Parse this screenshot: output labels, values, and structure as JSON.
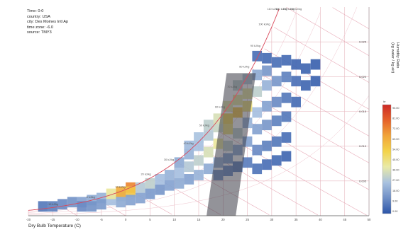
{
  "meta": {
    "lines": [
      "Time: 0-0",
      "country: USA",
      "city: Des Moines Intl Ap",
      "time zone: -6.0",
      "source: TMY3"
    ]
  },
  "chart_data": {
    "type": "heatmap",
    "title": "",
    "xlabel": "Dry Bulb Temperature (C)",
    "ylabel_lines": [
      "Humidity Ratio",
      "(kg water / kg air)"
    ],
    "xlim": [
      -20,
      50
    ],
    "ylim": [
      0,
      0.03
    ],
    "x_ticks": [
      -20,
      -15,
      -10,
      -5,
      0,
      5,
      10,
      15,
      20,
      25,
      30,
      35,
      40,
      45,
      50
    ],
    "y_ticks": [
      0.005,
      0.01,
      0.015,
      0.02,
      0.025
    ],
    "enthalpy_labels": [
      "-10 kJ/kg",
      "0 kJ/kg",
      "10 kJ/kg",
      "20 kJ/kg",
      "30 kJ/kg",
      "40 kJ/kg",
      "50 kJ/kg",
      "60 kJ/kg",
      "70 kJ/kg",
      "80 kJ/kg",
      "90 kJ/kg",
      "100 kJ/kg",
      "110 kJ/kg",
      "120 kJ/kg",
      "130 kJ/kg",
      "140 kJ/kg"
    ],
    "colorbar": {
      "label": "hr",
      "ticks": [
        "90.00",
        "81.00",
        "72.00",
        "63.00",
        "54.00",
        "45.00",
        "36.00",
        "27.00",
        "18.00",
        "9.00",
        "0.00"
      ],
      "min": 0,
      "max": 90,
      "colors": [
        "#2c55a8",
        "#6f8fc6",
        "#a9c2e0",
        "#e9eaa7",
        "#f3d34a",
        "#f1a53a",
        "#e5622a",
        "#cc2a26"
      ]
    },
    "comfort_band": {
      "x_range": [
        19.5,
        25.5
      ],
      "y_range": [
        0.0,
        0.0205
      ]
    },
    "density_cells": [
      {
        "t": -17,
        "w": 0.0006,
        "v": 8
      },
      {
        "t": -15,
        "w": 0.0006,
        "v": 10
      },
      {
        "t": -13,
        "w": 0.0009,
        "v": 12
      },
      {
        "t": -11,
        "w": 0.0012,
        "v": 14
      },
      {
        "t": -9,
        "w": 0.0012,
        "v": 18
      },
      {
        "t": -7,
        "w": 0.0015,
        "v": 20
      },
      {
        "t": -5,
        "w": 0.0018,
        "v": 22
      },
      {
        "t": -9,
        "w": 0.0006,
        "v": 12
      },
      {
        "t": -7,
        "w": 0.0006,
        "v": 14
      },
      {
        "t": -5,
        "w": 0.0009,
        "v": 16
      },
      {
        "t": -3,
        "w": 0.0015,
        "v": 25
      },
      {
        "t": -1,
        "w": 0.0021,
        "v": 30
      },
      {
        "t": -3,
        "w": 0.0024,
        "v": 40
      },
      {
        "t": -1,
        "w": 0.0027,
        "v": 62
      },
      {
        "t": 1,
        "w": 0.0033,
        "v": 70
      },
      {
        "t": 1,
        "w": 0.0027,
        "v": 55
      },
      {
        "t": -1,
        "w": 0.0012,
        "v": 20
      },
      {
        "t": 1,
        "w": 0.0015,
        "v": 18
      },
      {
        "t": 3,
        "w": 0.0018,
        "v": 18
      },
      {
        "t": 3,
        "w": 0.0033,
        "v": 28
      },
      {
        "t": 5,
        "w": 0.0039,
        "v": 30
      },
      {
        "t": 5,
        "w": 0.0024,
        "v": 16
      },
      {
        "t": 7,
        "w": 0.0045,
        "v": 25
      },
      {
        "t": 7,
        "w": 0.003,
        "v": 15
      },
      {
        "t": 9,
        "w": 0.0051,
        "v": 22
      },
      {
        "t": 9,
        "w": 0.0036,
        "v": 18
      },
      {
        "t": 11,
        "w": 0.0054,
        "v": 25
      },
      {
        "t": 11,
        "w": 0.0039,
        "v": 20
      },
      {
        "t": 13,
        "w": 0.0063,
        "v": 28
      },
      {
        "t": 13,
        "w": 0.0045,
        "v": 18
      },
      {
        "t": 15,
        "w": 0.0072,
        "v": 30
      },
      {
        "t": 15,
        "w": 0.0051,
        "v": 22
      },
      {
        "t": 17,
        "w": 0.0084,
        "v": 35
      },
      {
        "t": 17,
        "w": 0.006,
        "v": 20
      },
      {
        "t": 19,
        "w": 0.0096,
        "v": 40
      },
      {
        "t": 19,
        "w": 0.0069,
        "v": 22
      },
      {
        "t": 21,
        "w": 0.0117,
        "v": 45
      },
      {
        "t": 21,
        "w": 0.0093,
        "v": 30
      },
      {
        "t": 21,
        "w": 0.0132,
        "v": 50
      },
      {
        "t": 23,
        "w": 0.0141,
        "v": 55
      },
      {
        "t": 23,
        "w": 0.0111,
        "v": 30
      },
      {
        "t": 25,
        "w": 0.015,
        "v": 45
      },
      {
        "t": 25,
        "w": 0.0168,
        "v": 40
      },
      {
        "t": 27,
        "w": 0.0171,
        "v": 30
      },
      {
        "t": 27,
        "w": 0.0141,
        "v": 25
      },
      {
        "t": 29,
        "w": 0.018,
        "v": 22
      },
      {
        "t": 29,
        "w": 0.015,
        "v": 18
      },
      {
        "t": 31,
        "w": 0.0186,
        "v": 15
      },
      {
        "t": 31,
        "w": 0.0156,
        "v": 12
      },
      {
        "t": 33,
        "w": 0.0192,
        "v": 10
      },
      {
        "t": 33,
        "w": 0.0162,
        "v": 8
      },
      {
        "t": 35,
        "w": 0.0186,
        "v": 6
      },
      {
        "t": 23,
        "w": 0.018,
        "v": 30
      },
      {
        "t": 25,
        "w": 0.0189,
        "v": 28
      },
      {
        "t": 27,
        "w": 0.0195,
        "v": 20
      },
      {
        "t": 29,
        "w": 0.0201,
        "v": 15
      },
      {
        "t": 19,
        "w": 0.012,
        "v": 32
      },
      {
        "t": 17,
        "w": 0.0108,
        "v": 28
      },
      {
        "t": 15,
        "w": 0.0093,
        "v": 25
      },
      {
        "t": 13,
        "w": 0.0081,
        "v": 22
      },
      {
        "t": 11,
        "w": 0.0069,
        "v": 20
      },
      {
        "t": 27,
        "w": 0.0117,
        "v": 18
      },
      {
        "t": 29,
        "w": 0.0123,
        "v": 15
      },
      {
        "t": 31,
        "w": 0.0129,
        "v": 10
      },
      {
        "t": 33,
        "w": 0.0135,
        "v": 8
      },
      {
        "t": 25,
        "w": 0.0126,
        "v": 22
      },
      {
        "t": 23,
        "w": 0.0087,
        "v": 20
      },
      {
        "t": 25,
        "w": 0.0099,
        "v": 18
      },
      {
        "t": 27,
        "w": 0.0087,
        "v": 12
      },
      {
        "t": 29,
        "w": 0.0093,
        "v": 10
      },
      {
        "t": 31,
        "w": 0.0099,
        "v": 8
      },
      {
        "t": 33,
        "w": 0.0105,
        "v": 6
      },
      {
        "t": 21,
        "w": 0.0075,
        "v": 18
      },
      {
        "t": 19,
        "w": 0.0051,
        "v": 14
      },
      {
        "t": 21,
        "w": 0.0057,
        "v": 12
      },
      {
        "t": 23,
        "w": 0.0063,
        "v": 10
      },
      {
        "t": 25,
        "w": 0.0069,
        "v": 9
      },
      {
        "t": 27,
        "w": 0.006,
        "v": 7
      },
      {
        "t": 29,
        "w": 0.0066,
        "v": 6
      },
      {
        "t": 31,
        "w": 0.0072,
        "v": 5
      },
      {
        "t": 33,
        "w": 0.0078,
        "v": 4
      },
      {
        "t": 35,
        "w": 0.0156,
        "v": 5
      },
      {
        "t": 35,
        "w": 0.021,
        "v": 4
      },
      {
        "t": 33,
        "w": 0.0216,
        "v": 5
      },
      {
        "t": 31,
        "w": 0.0213,
        "v": 6
      },
      {
        "t": 29,
        "w": 0.0219,
        "v": 5
      },
      {
        "t": 27,
        "w": 0.0222,
        "v": 6
      },
      {
        "t": 37,
        "w": 0.0204,
        "v": 4
      },
      {
        "t": 37,
        "w": 0.018,
        "v": 4
      },
      {
        "t": 39,
        "w": 0.021,
        "v": 3
      },
      {
        "t": 39,
        "w": 0.0186,
        "v": 3
      },
      {
        "t": 23,
        "w": 0.0159,
        "v": 40
      },
      {
        "t": 21,
        "w": 0.015,
        "v": 38
      },
      {
        "t": 19,
        "w": 0.0132,
        "v": 35
      },
      {
        "t": 17,
        "w": 0.0123,
        "v": 30
      },
      {
        "t": 15,
        "w": 0.0105,
        "v": 26
      },
      {
        "t": 13,
        "w": 0.0093,
        "v": 24
      }
    ]
  }
}
